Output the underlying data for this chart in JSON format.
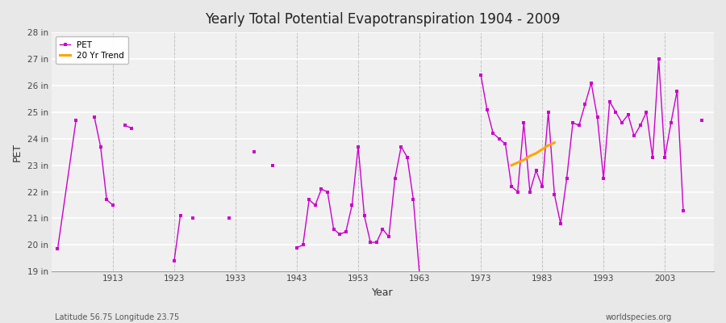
{
  "title": "Yearly Total Potential Evapotranspiration 1904 - 2009",
  "xlabel": "Year",
  "ylabel": "PET",
  "bottom_left_label": "Latitude 56.75 Longitude 23.75",
  "bottom_right_label": "worldspecies.org",
  "pet_color": "#CC00CC",
  "trend_color": "#FFA500",
  "ylim": [
    19,
    28
  ],
  "yticks": [
    19,
    20,
    21,
    22,
    23,
    24,
    25,
    26,
    27,
    28
  ],
  "ytick_labels": [
    "19 in",
    "20 in",
    "21 in",
    "22 in",
    "23 in",
    "24 in",
    "25 in",
    "26 in",
    "27 in",
    "28 in"
  ],
  "xtick_positions": [
    1913,
    1923,
    1933,
    1943,
    1953,
    1963,
    1973,
    1983,
    1993,
    2003
  ],
  "pet_data": [
    [
      1904,
      19.85
    ],
    [
      1907,
      24.7
    ],
    [
      1908,
      null
    ],
    [
      1909,
      null
    ],
    [
      1910,
      24.8
    ],
    [
      1911,
      23.7
    ],
    [
      1912,
      21.7
    ],
    [
      1913,
      21.5
    ],
    [
      1914,
      null
    ],
    [
      1915,
      24.5
    ],
    [
      1916,
      24.4
    ],
    [
      1917,
      null
    ],
    [
      1918,
      null
    ],
    [
      1919,
      null
    ],
    [
      1920,
      null
    ],
    [
      1921,
      null
    ],
    [
      1922,
      null
    ],
    [
      1923,
      19.4
    ],
    [
      1924,
      21.1
    ],
    [
      1925,
      null
    ],
    [
      1926,
      21.0
    ],
    [
      1927,
      null
    ],
    [
      1928,
      null
    ],
    [
      1929,
      null
    ],
    [
      1930,
      null
    ],
    [
      1931,
      null
    ],
    [
      1932,
      21.0
    ],
    [
      1933,
      null
    ],
    [
      1934,
      null
    ],
    [
      1935,
      null
    ],
    [
      1936,
      23.5
    ],
    [
      1937,
      null
    ],
    [
      1938,
      null
    ],
    [
      1939,
      23.0
    ],
    [
      1940,
      null
    ],
    [
      1941,
      null
    ],
    [
      1942,
      null
    ],
    [
      1943,
      19.9
    ],
    [
      1944,
      20.0
    ],
    [
      1945,
      21.7
    ],
    [
      1946,
      21.5
    ],
    [
      1947,
      22.1
    ],
    [
      1948,
      22.0
    ],
    [
      1949,
      20.6
    ],
    [
      1950,
      20.4
    ],
    [
      1951,
      20.5
    ],
    [
      1952,
      21.5
    ],
    [
      1953,
      23.7
    ],
    [
      1954,
      21.1
    ],
    [
      1955,
      20.1
    ],
    [
      1956,
      20.1
    ],
    [
      1957,
      20.6
    ],
    [
      1958,
      20.3
    ],
    [
      1959,
      22.5
    ],
    [
      1960,
      23.7
    ],
    [
      1961,
      23.3
    ],
    [
      1962,
      21.7
    ],
    [
      1963,
      18.9
    ],
    [
      1964,
      null
    ],
    [
      1965,
      null
    ],
    [
      1966,
      null
    ],
    [
      1967,
      null
    ],
    [
      1968,
      null
    ],
    [
      1969,
      null
    ],
    [
      1970,
      null
    ],
    [
      1971,
      null
    ],
    [
      1972,
      null
    ],
    [
      1973,
      26.4
    ],
    [
      1974,
      25.1
    ],
    [
      1975,
      24.2
    ],
    [
      1976,
      24.0
    ],
    [
      1977,
      23.8
    ],
    [
      1978,
      22.2
    ],
    [
      1979,
      22.0
    ],
    [
      1980,
      24.6
    ],
    [
      1981,
      22.0
    ],
    [
      1982,
      22.8
    ],
    [
      1983,
      22.2
    ],
    [
      1984,
      25.0
    ],
    [
      1985,
      21.9
    ],
    [
      1986,
      20.8
    ],
    [
      1987,
      22.5
    ],
    [
      1988,
      24.6
    ],
    [
      1989,
      24.5
    ],
    [
      1990,
      25.3
    ],
    [
      1991,
      26.1
    ],
    [
      1992,
      24.8
    ],
    [
      1993,
      22.5
    ],
    [
      1994,
      25.4
    ],
    [
      1995,
      25.0
    ],
    [
      1996,
      24.6
    ],
    [
      1997,
      24.9
    ],
    [
      1998,
      24.1
    ],
    [
      1999,
      24.5
    ],
    [
      2000,
      25.0
    ],
    [
      2001,
      23.3
    ],
    [
      2002,
      27.0
    ],
    [
      2003,
      23.3
    ],
    [
      2004,
      24.6
    ],
    [
      2005,
      25.8
    ],
    [
      2006,
      21.3
    ],
    [
      2007,
      null
    ],
    [
      2008,
      null
    ],
    [
      2009,
      24.7
    ]
  ],
  "trend_years": [
    1978,
    1979,
    1980,
    1981,
    1982,
    1983,
    1984,
    1985
  ],
  "trend_values": [
    23.0,
    23.1,
    23.2,
    23.35,
    23.45,
    23.6,
    23.75,
    23.85
  ]
}
